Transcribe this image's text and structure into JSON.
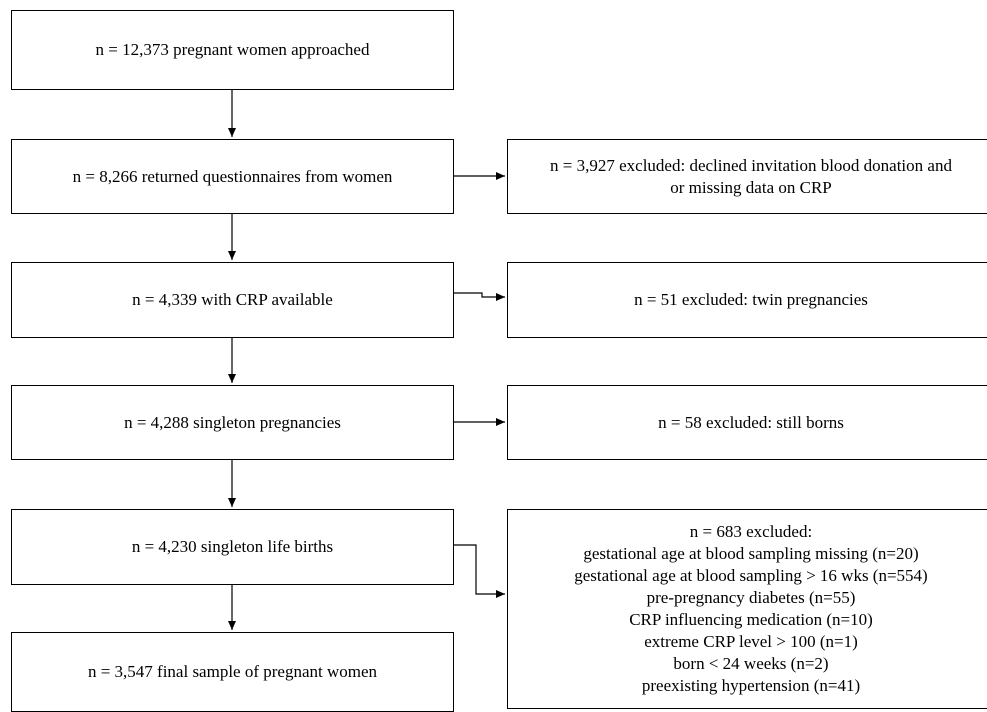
{
  "main_flow": [
    {
      "text": "n = 12,373 pregnant women approached"
    },
    {
      "text": "n = 8,266 returned questionnaires from  women"
    },
    {
      "text": "n = 4,339 with CRP available"
    },
    {
      "text": "n = 4,288 singleton pregnancies"
    },
    {
      "text": "n = 4,230 singleton life births"
    },
    {
      "text": "n = 3,547 final sample of pregnant women"
    }
  ],
  "exclusions": [
    {
      "lines": [
        "n = 3,927 excluded: declined invitation blood donation and",
        "or missing data on CRP"
      ]
    },
    {
      "lines": [
        "n = 51 excluded: twin pregnancies"
      ]
    },
    {
      "lines": [
        "n = 58 excluded: still borns"
      ]
    },
    {
      "lines": [
        "n = 683 excluded:",
        "gestational age at blood sampling missing (n=20)",
        "gestational age at blood sampling > 16 wks (n=554)",
        "pre-pregnancy diabetes (n=55)",
        "CRP influencing medication (n=10)",
        "extreme CRP level > 100 (n=1)",
        "born < 24 weeks (n=2)",
        "preexisting hypertension (n=41)"
      ]
    }
  ]
}
